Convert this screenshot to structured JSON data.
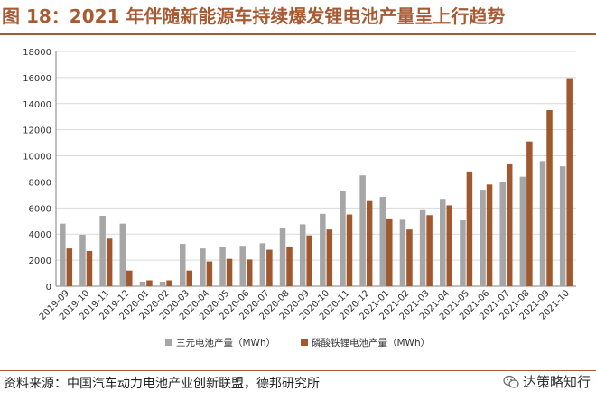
{
  "header": {
    "title": "图 18：2021 年伴随新能源车持续爆发锂电池产量呈上行趋势"
  },
  "footer": {
    "source": "资料来源：中国汽车动力电池产业创新联盟，德邦研究所",
    "watermark": "达策略知行",
    "watermark_icon": "wechat-icon"
  },
  "colors": {
    "title": "#a85a33",
    "series_ternary": "#a6a6a6",
    "series_lfp": "#a0592f"
  },
  "chart_data": {
    "type": "bar",
    "title": "",
    "xlabel": "",
    "ylabel": "",
    "ylim": [
      0,
      18000
    ],
    "yticks": [
      0,
      2000,
      4000,
      6000,
      8000,
      10000,
      12000,
      14000,
      16000,
      18000
    ],
    "grid": true,
    "legend_position": "bottom",
    "categories": [
      "2019-09",
      "2019-10",
      "2019-11",
      "2019-12",
      "2020-01",
      "2020-02",
      "2020-03",
      "2020-04",
      "2020-05",
      "2020-06",
      "2020-07",
      "2020-08",
      "2020-09",
      "2020-10",
      "2020-11",
      "2020-12",
      "2021-01",
      "2021-02",
      "2021-03",
      "2021-04",
      "2021-05",
      "2021-06",
      "2021-07",
      "2021-08",
      "2021-09",
      "2021-10"
    ],
    "series": [
      {
        "name": "三元电池产量（MWh）",
        "color": "#a6a6a6",
        "values": [
          4800,
          3950,
          5400,
          4800,
          350,
          350,
          3250,
          2900,
          3050,
          3100,
          3300,
          4450,
          4750,
          5550,
          7300,
          8500,
          6850,
          5100,
          5900,
          6700,
          5050,
          7400,
          8000,
          8400,
          9600,
          9200
        ]
      },
      {
        "name": "磷酸铁锂电池产量（MWh）",
        "color": "#a0592f",
        "values": [
          2900,
          2700,
          3650,
          1200,
          450,
          450,
          1200,
          1900,
          2100,
          2050,
          2800,
          3050,
          3900,
          4350,
          5500,
          6600,
          5200,
          4350,
          5450,
          6200,
          8800,
          7800,
          9350,
          11100,
          13500,
          15950
        ]
      }
    ]
  }
}
